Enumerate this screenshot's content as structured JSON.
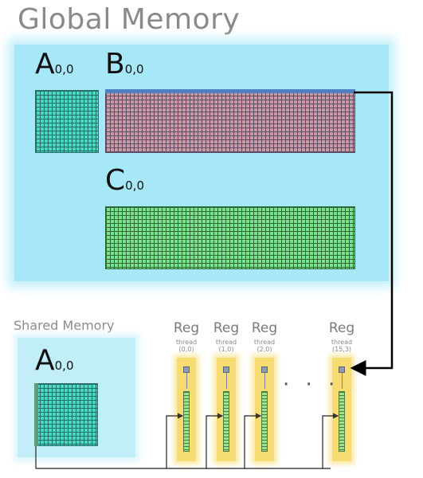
{
  "diagram": {
    "title": "Global Memory",
    "shared_memory_label": "Shared Memory",
    "matrices": {
      "a": {
        "letter": "A",
        "sub": "0,0"
      },
      "b": {
        "letter": "B",
        "sub": "0,0"
      },
      "c": {
        "letter": "C",
        "sub": "0,0"
      },
      "a_shared": {
        "letter": "A",
        "sub": "0,0"
      }
    },
    "registers": [
      {
        "label": "Reg",
        "thread_word": "thread",
        "thread_id": "(0,0)"
      },
      {
        "label": "Reg",
        "thread_word": "thread",
        "thread_id": "(1,0)"
      },
      {
        "label": "Reg",
        "thread_word": "thread",
        "thread_id": "(2,0)"
      },
      {
        "label": "Reg",
        "thread_word": "thread",
        "thread_id": "(15,3)"
      }
    ],
    "ellipsis": "· · ·"
  }
}
